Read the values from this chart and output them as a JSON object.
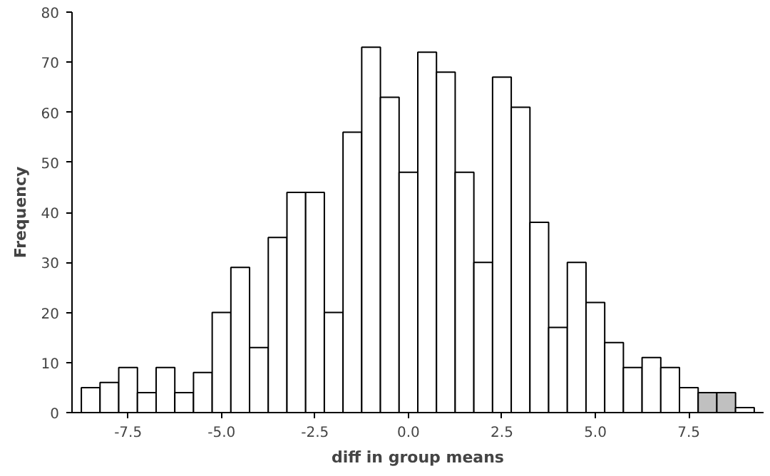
{
  "chart_data": {
    "type": "histogram",
    "xlabel": "diff in group means",
    "ylabel": "Frequency",
    "bins": [
      -8.75,
      -8.25,
      -7.75,
      -7.25,
      -6.75,
      -6.25,
      -5.75,
      -5.25,
      -4.75,
      -4.25,
      -3.75,
      -3.25,
      -2.75,
      -2.25,
      -1.75,
      -1.25,
      -0.75,
      -0.25,
      0.25,
      0.75,
      1.25,
      1.75,
      2.25,
      2.75,
      3.25,
      3.75,
      4.25,
      4.75,
      5.25,
      5.75,
      6.25,
      6.75,
      7.25,
      7.75,
      8.25,
      8.75,
      9.25
    ],
    "values": [
      5,
      6,
      9,
      4,
      9,
      4,
      8,
      20,
      29,
      13,
      35,
      44,
      44,
      20,
      56,
      73,
      63,
      48,
      72,
      68,
      48,
      30,
      67,
      61,
      38,
      17,
      30,
      22,
      14,
      9,
      11,
      9,
      5,
      4,
      4,
      1
    ],
    "colors": [
      "#ffffff",
      "#ffffff",
      "#ffffff",
      "#ffffff",
      "#ffffff",
      "#ffffff",
      "#ffffff",
      "#ffffff",
      "#ffffff",
      "#ffffff",
      "#ffffff",
      "#ffffff",
      "#ffffff",
      "#ffffff",
      "#ffffff",
      "#ffffff",
      "#ffffff",
      "#ffffff",
      "#ffffff",
      "#ffffff",
      "#ffffff",
      "#ffffff",
      "#ffffff",
      "#ffffff",
      "#ffffff",
      "#ffffff",
      "#ffffff",
      "#ffffff",
      "#ffffff",
      "#ffffff",
      "#ffffff",
      "#ffffff",
      "#ffffff",
      "#c0c0c0",
      "#c0c0c0",
      "#ffffff"
    ],
    "xlim": [
      -9,
      9.5
    ],
    "ylim": [
      0,
      80
    ],
    "xticks": [
      {
        "value": -7.5,
        "label": "-7.5"
      },
      {
        "value": -5,
        "label": "-5.0"
      },
      {
        "value": -2.5,
        "label": "-2.5"
      },
      {
        "value": 0,
        "label": "0.0"
      },
      {
        "value": 2.5,
        "label": "2.5"
      },
      {
        "value": 5,
        "label": "5.0"
      },
      {
        "value": 7.5,
        "label": "7.5"
      }
    ],
    "yticks": [
      0,
      10,
      20,
      30,
      40,
      50,
      60,
      70,
      80
    ],
    "grid": false
  }
}
